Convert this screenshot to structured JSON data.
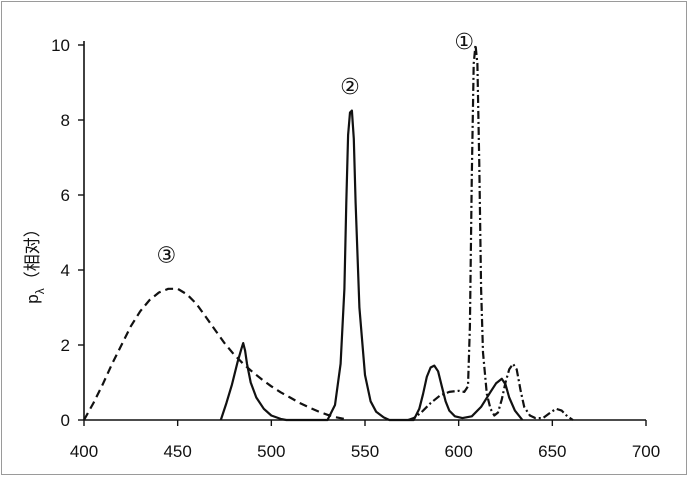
{
  "chart_data": {
    "type": "line",
    "title": "",
    "xlabel": "",
    "ylabel": "p",
    "ylabel_subscript": "λ",
    "ylabel_suffix": "（相对）",
    "xlim": [
      400,
      700
    ],
    "ylim": [
      0,
      10
    ],
    "x_ticks": [
      400,
      450,
      500,
      550,
      600,
      650,
      700
    ],
    "y_ticks": [
      0,
      2,
      4,
      6,
      8,
      10
    ],
    "grid": false,
    "legend": "none",
    "annotations": [
      {
        "text": "①",
        "x": 603,
        "y": 9.9
      },
      {
        "text": "②",
        "x": 542,
        "y": 8.7
      },
      {
        "text": "③",
        "x": 444,
        "y": 4.2
      }
    ],
    "series": [
      {
        "label": "①",
        "style": "dash-dot",
        "x": [
          573,
          576,
          580,
          585,
          590,
          595,
          600,
          603,
          605,
          606,
          607,
          608,
          609,
          610,
          611,
          612,
          613,
          615,
          617,
          619,
          621,
          623,
          625,
          627,
          629,
          631,
          633,
          635,
          638,
          641,
          645,
          649,
          652,
          655,
          658,
          661
        ],
        "y": [
          0,
          0.05,
          0.2,
          0.45,
          0.65,
          0.75,
          0.78,
          0.75,
          0.9,
          2.5,
          6.5,
          9.5,
          10.0,
          9.5,
          6.8,
          3.5,
          1.8,
          0.7,
          0.3,
          0.12,
          0.2,
          0.55,
          1.0,
          1.35,
          1.5,
          1.35,
          0.8,
          0.35,
          0.12,
          0.05,
          0.05,
          0.2,
          0.3,
          0.25,
          0.1,
          0
        ]
      },
      {
        "label": "②",
        "style": "solid",
        "x": [
          473,
          476,
          479,
          482,
          484,
          485,
          486,
          487,
          489,
          492,
          496,
          500,
          505,
          508,
          530,
          534,
          537,
          539,
          540,
          541,
          542,
          543,
          544,
          545,
          547,
          550,
          553,
          556,
          560,
          563,
          576,
          579,
          581,
          583,
          585,
          587,
          589,
          591,
          593,
          595,
          598,
          602,
          607,
          612,
          617,
          620,
          623,
          625,
          627,
          630,
          634
        ],
        "y": [
          0,
          0.45,
          0.95,
          1.55,
          1.9,
          2.05,
          1.85,
          1.5,
          1.0,
          0.6,
          0.3,
          0.12,
          0.03,
          0,
          0,
          0.4,
          1.5,
          3.5,
          5.8,
          7.6,
          8.2,
          8.25,
          7.5,
          5.8,
          3.0,
          1.2,
          0.5,
          0.22,
          0.07,
          0,
          0,
          0.3,
          0.7,
          1.15,
          1.4,
          1.45,
          1.3,
          0.9,
          0.5,
          0.25,
          0.1,
          0.05,
          0.1,
          0.35,
          0.75,
          0.98,
          1.1,
          0.95,
          0.6,
          0.25,
          0
        ]
      },
      {
        "label": "③",
        "style": "dashed",
        "x": [
          400,
          405,
          410,
          415,
          420,
          425,
          430,
          435,
          440,
          445,
          450,
          455,
          460,
          465,
          470,
          475,
          480,
          485,
          490,
          495,
          500,
          505,
          510,
          515,
          520,
          525,
          530,
          535,
          540
        ],
        "y": [
          0,
          0.45,
          0.95,
          1.5,
          2.0,
          2.5,
          2.9,
          3.2,
          3.4,
          3.5,
          3.5,
          3.35,
          3.1,
          2.75,
          2.4,
          2.05,
          1.75,
          1.5,
          1.28,
          1.08,
          0.9,
          0.74,
          0.6,
          0.46,
          0.34,
          0.23,
          0.14,
          0.07,
          0.02
        ]
      }
    ]
  }
}
